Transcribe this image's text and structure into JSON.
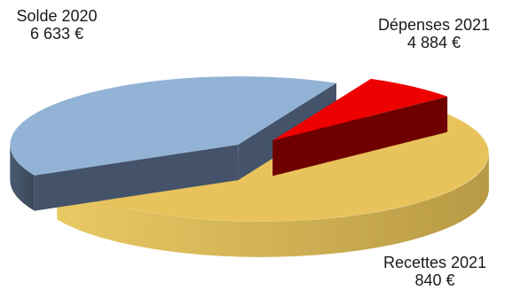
{
  "chart_data": {
    "type": "pie",
    "title": "",
    "style": "3d-exploded",
    "slices": [
      {
        "category": "Solde 2020",
        "value": 6633,
        "value_label": "6 633 €",
        "color": "#e8c35c"
      },
      {
        "category": "Dépenses 2021",
        "value": 4884,
        "value_label": "4 884 €",
        "color": "#93b3d6"
      },
      {
        "category": "Recettes 2021",
        "value": 840,
        "value_label": "840 €",
        "color": "#ee0000"
      }
    ]
  }
}
